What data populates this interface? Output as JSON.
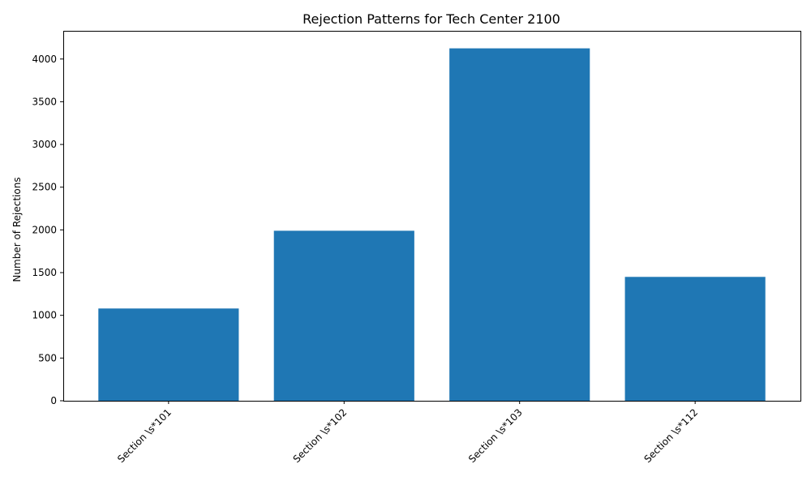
{
  "chart_data": {
    "type": "bar",
    "title": "Rejection Patterns for Tech Center 2100",
    "xlabel": "",
    "ylabel": "Number of Rejections",
    "categories": [
      "Section \\s*101",
      "Section \\s*102",
      "Section \\s*103",
      "Section \\s*112"
    ],
    "values": [
      1080,
      1990,
      4125,
      1450
    ],
    "ylim": [
      0,
      4330
    ],
    "yticks": [
      0,
      500,
      1000,
      1500,
      2000,
      2500,
      3000,
      3500,
      4000
    ],
    "bar_color": "#1f77b4",
    "grid": false,
    "x_tick_rotation": 45
  }
}
